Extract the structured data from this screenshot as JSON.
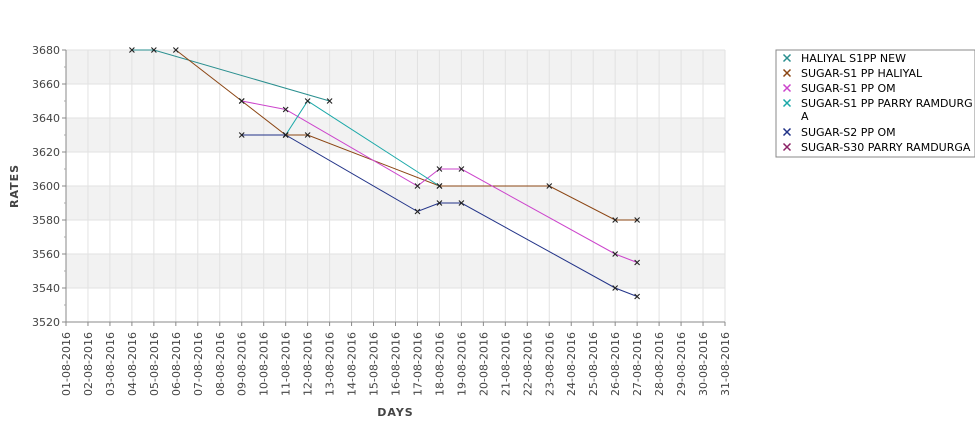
{
  "chart_data": {
    "type": "line",
    "xlabel": "DAYS",
    "ylabel": "RATES",
    "ylim": [
      3520,
      3680
    ],
    "yticks": [
      3520,
      3540,
      3560,
      3580,
      3600,
      3620,
      3640,
      3660,
      3680
    ],
    "categories": [
      "01-08-2016",
      "02-08-2016",
      "03-08-2016",
      "04-08-2016",
      "05-08-2016",
      "06-08-2016",
      "07-08-2016",
      "08-08-2016",
      "09-08-2016",
      "10-08-2016",
      "11-08-2016",
      "12-08-2016",
      "13-08-2016",
      "14-08-2016",
      "15-08-2016",
      "16-08-2016",
      "17-08-2016",
      "18-08-2016",
      "19-08-2016",
      "20-08-2016",
      "21-08-2016",
      "22-08-2016",
      "23-08-2016",
      "24-08-2016",
      "25-08-2016",
      "26-08-2016",
      "27-08-2016",
      "28-08-2016",
      "29-08-2016",
      "30-08-2016",
      "31-08-2016"
    ],
    "grid": true,
    "legend_position": "right",
    "series": [
      {
        "name": "HALIYAL S1PP NEW",
        "color": "#2a8f8f",
        "points": [
          [
            3,
            3680
          ],
          [
            4,
            3680
          ],
          [
            12,
            3650
          ]
        ]
      },
      {
        "name": "SUGAR-S1 PP HALIYAL",
        "color": "#8b4513",
        "points": [
          [
            5,
            3680
          ],
          [
            8,
            3650
          ],
          [
            10,
            3630
          ],
          [
            11,
            3630
          ],
          [
            17,
            3600
          ],
          [
            22,
            3600
          ],
          [
            25,
            3580
          ],
          [
            26,
            3580
          ]
        ]
      },
      {
        "name": "SUGAR-S1 PP OM",
        "color": "#cc44cc",
        "points": [
          [
            8,
            3650
          ],
          [
            10,
            3645
          ],
          [
            16,
            3600
          ],
          [
            17,
            3610
          ],
          [
            18,
            3610
          ],
          [
            25,
            3560
          ],
          [
            26,
            3555
          ]
        ]
      },
      {
        "name": "SUGAR-S1 PP PARRY RAMDURGA",
        "color": "#1aa8a8",
        "points": [
          [
            10,
            3630
          ],
          [
            11,
            3650
          ],
          [
            17,
            3600
          ]
        ]
      },
      {
        "name": "SUGAR-S2 PP OM",
        "color": "#223388",
        "points": [
          [
            8,
            3630
          ],
          [
            10,
            3630
          ],
          [
            16,
            3585
          ],
          [
            17,
            3590
          ],
          [
            18,
            3590
          ],
          [
            25,
            3540
          ],
          [
            26,
            3535
          ]
        ]
      },
      {
        "name": "SUGAR-S30 PARRY RAMDURGA",
        "color": "#8b2266",
        "points": []
      }
    ]
  }
}
